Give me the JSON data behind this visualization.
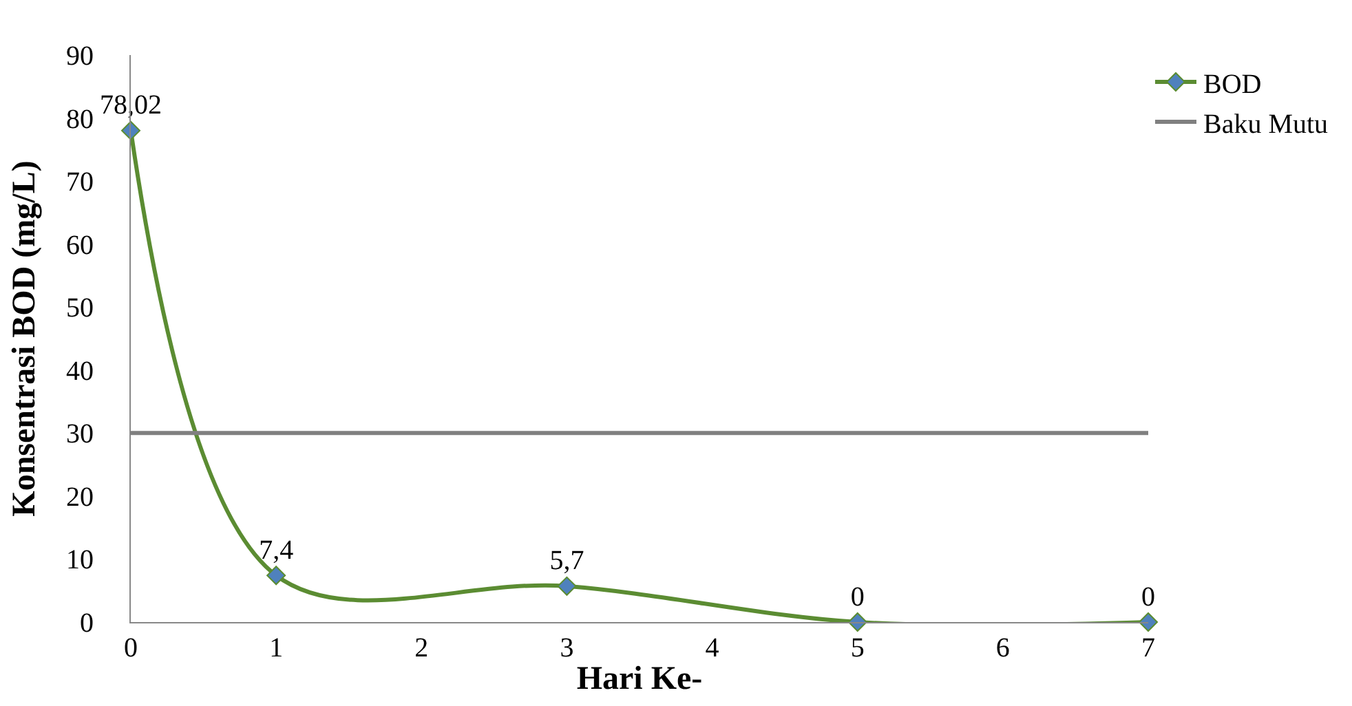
{
  "chart_data": {
    "type": "line",
    "xlabel": "Hari Ke-",
    "ylabel": "Konsentrasi BOD (mg/L)",
    "x": [
      0,
      1,
      3,
      5,
      7
    ],
    "series": [
      {
        "name": "BOD",
        "color": "#5b8c32",
        "values": [
          78.02,
          7.4,
          5.7,
          0,
          0
        ],
        "value_labels": [
          "78,02",
          "7,4",
          "5,7",
          "0",
          "0"
        ],
        "marker": "diamond"
      },
      {
        "name": "Baku Mutu",
        "color": "#808080",
        "x": [
          0,
          7
        ],
        "values": [
          30,
          30
        ],
        "marker": "none"
      }
    ],
    "xlim": [
      0,
      7
    ],
    "xticks": [
      0,
      1,
      2,
      3,
      4,
      5,
      6,
      7
    ],
    "ylim": [
      0,
      90
    ],
    "yticks": [
      0,
      10,
      20,
      30,
      40,
      50,
      60,
      70,
      80,
      90
    ],
    "legend": "top right",
    "line_style": "solid"
  }
}
